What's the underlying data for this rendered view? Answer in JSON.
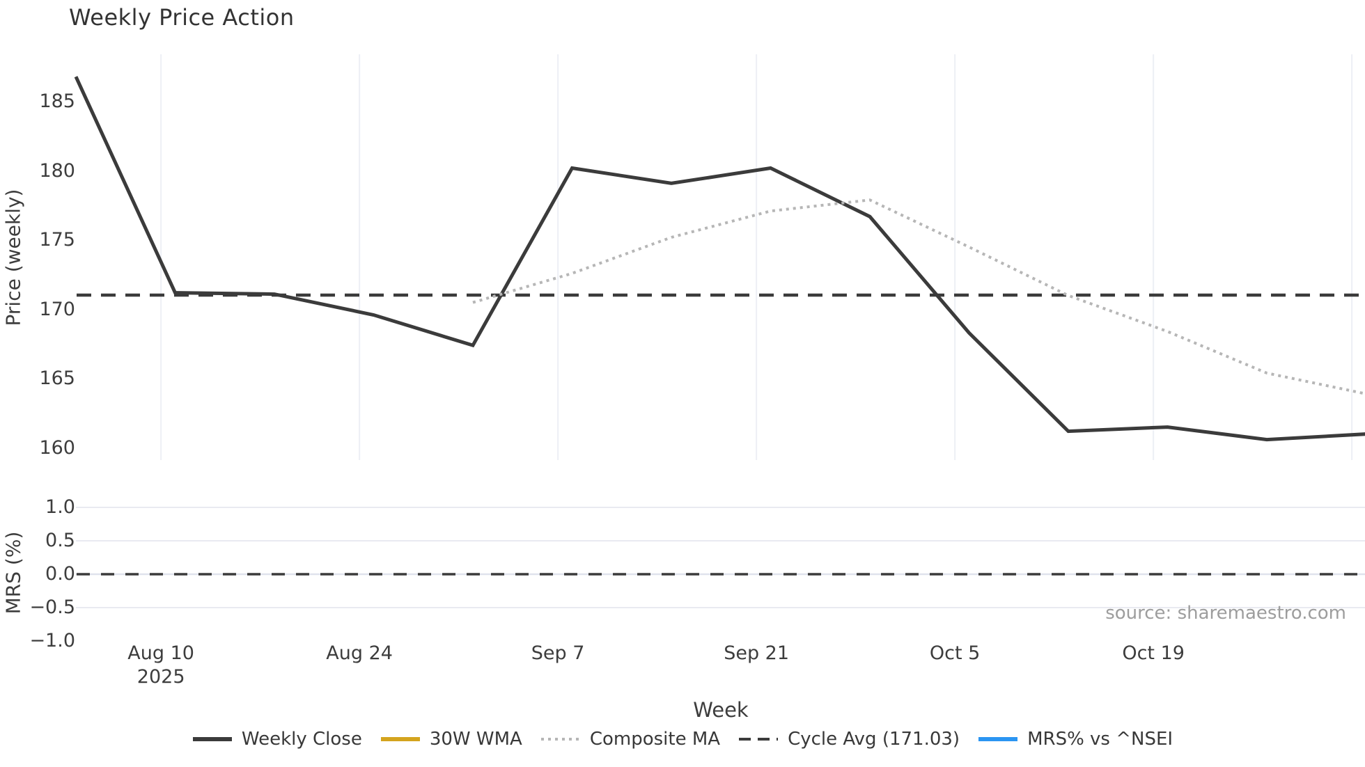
{
  "figure": {
    "title": "Weekly Price Action",
    "source": "source: sharemaestro.com"
  },
  "legend": {
    "items": [
      {
        "label": "Weekly Close",
        "color": "#3b3b3b",
        "style": "solid"
      },
      {
        "label": "30W WMA",
        "color": "#d4a41e",
        "style": "solid"
      },
      {
        "label": "Composite MA",
        "color": "#b6b6b6",
        "style": "dotted"
      },
      {
        "label": "Cycle Avg (171.03)",
        "color": "#3b3b3b",
        "style": "dashed"
      },
      {
        "label": "MRS% vs ^NSEI",
        "color": "#2b95f2",
        "style": "solid"
      }
    ]
  },
  "chart_data": {
    "type": "line",
    "title": "Weekly Price Action",
    "xlabel": "Week",
    "panels": [
      {
        "id": "price",
        "ylabel": "Price (weekly)",
        "yticks": [
          185,
          180,
          175,
          170,
          165,
          160
        ],
        "ylim": [
          159.0,
          188.6
        ],
        "grid": "vertical-only"
      },
      {
        "id": "mrs",
        "ylabel": "MRS (%)",
        "yticks": [
          "1.0",
          "0.5",
          "0.0",
          "−0.5",
          "−1.0"
        ],
        "ytick_values": [
          1.0,
          0.5,
          0.0,
          -0.5,
          -1.0
        ],
        "ylim": [
          -1.0,
          1.0
        ],
        "gridline_values": [
          1.0,
          0.5,
          0.0,
          -0.5
        ],
        "grid": "horizontal-only"
      }
    ],
    "x": [
      "Aug 4",
      "Aug 11",
      "Aug 18",
      "Aug 25",
      "Sep 1",
      "Sep 8",
      "Sep 15",
      "Sep 22",
      "Sep 29",
      "Oct 6",
      "Oct 13",
      "Oct 20",
      "Oct 27",
      "Nov 3"
    ],
    "x_days": [
      0,
      7,
      14,
      21,
      28,
      35,
      42,
      49,
      56,
      63,
      70,
      77,
      84,
      91
    ],
    "x_gridlines": [
      {
        "day": 6,
        "label": "Aug 10",
        "sublabel": "2025"
      },
      {
        "day": 20,
        "label": "Aug 24"
      },
      {
        "day": 34,
        "label": "Sep 7"
      },
      {
        "day": 48,
        "label": "Sep 21"
      },
      {
        "day": 62,
        "label": "Oct 5"
      },
      {
        "day": 76,
        "label": "Oct 19"
      },
      {
        "day": 90,
        "label": ""
      }
    ],
    "series": [
      {
        "name": "Weekly Close",
        "panel": "price",
        "color": "#3b3b3b",
        "style": "solid",
        "values": [
          186.8,
          171.2,
          171.1,
          169.6,
          167.4,
          180.2,
          179.1,
          180.2,
          176.7,
          168.3,
          161.2,
          161.5,
          160.6,
          161.0
        ]
      },
      {
        "name": "Composite MA",
        "panel": "price",
        "color": "#b6b6b6",
        "style": "dotted",
        "values": [
          null,
          null,
          null,
          null,
          170.5,
          172.6,
          175.2,
          177.1,
          177.9,
          174.5,
          171.0,
          168.4,
          165.4,
          163.9
        ]
      }
    ],
    "reference_lines": [
      {
        "name": "Cycle Avg",
        "panel": "price",
        "value": 171.03,
        "style": "dashed",
        "color": "#3b3b3b"
      },
      {
        "name": "MRS zero",
        "panel": "mrs",
        "value": 0.0,
        "style": "dashed",
        "color": "#3b3b3b"
      }
    ]
  }
}
